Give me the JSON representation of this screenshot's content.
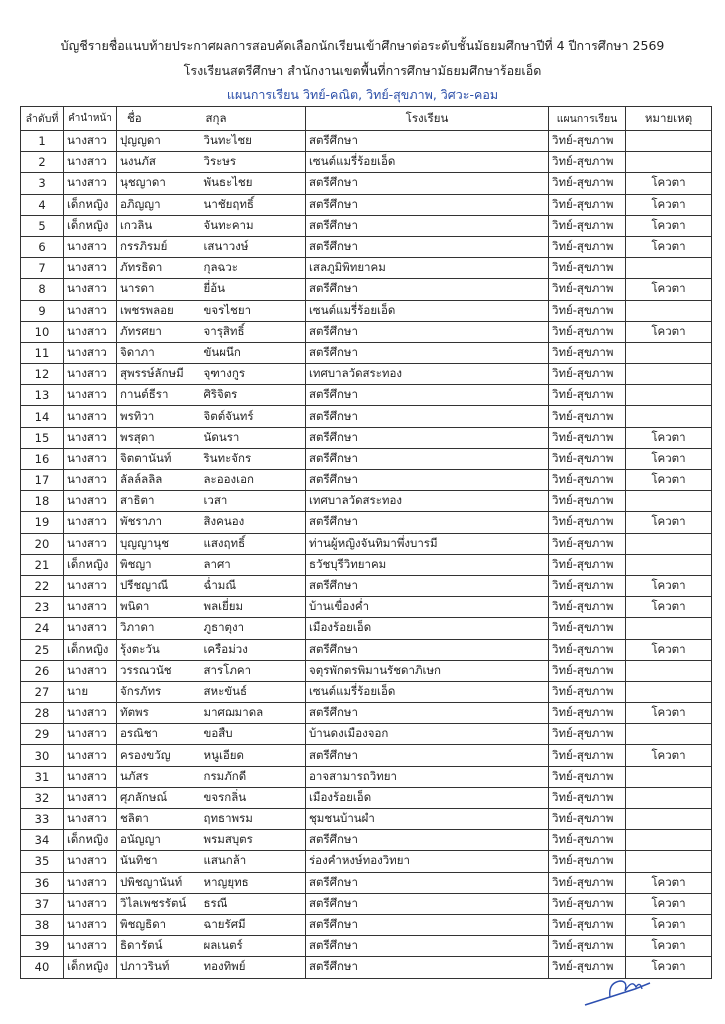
{
  "title_line1": "บัญชีรายชื่อแนบท้ายประกาศผลการสอบคัดเลือกนักเรียนเข้าศึกษาต่อระดับชั้นมัธยมศึกษาปีที่ 4 ปีการศึกษา 2569",
  "title_line2": "โรงเรียนสตรีศึกษา สำนักงานเขตพื้นที่การศึกษามัธยมศึกษาร้อยเอ็ด",
  "title_line3": "แผนการเรียน วิทย์-คณิต, วิทย์-สุขภาพ, วิศวะ-คอม",
  "accent_color": "#2b4ea8",
  "headers": {
    "no": "ลำดับที่",
    "prefix": "คำนำหน้า",
    "first": "ชื่อ",
    "last": "สกุล",
    "school": "โรงเรียน",
    "plan": "แผนการเรียน",
    "note": "หมายเหตุ"
  },
  "rows": [
    [
      "1",
      "นางสาว",
      "ปุญญดา",
      "วินทะไชย",
      "สตรีศึกษา",
      "วิทย์-สุขภาพ",
      ""
    ],
    [
      "2",
      "นางสาว",
      "นงนภัส",
      "วิระษร",
      "เซนต์แมรี่ร้อยเอ็ด",
      "วิทย์-สุขภาพ",
      ""
    ],
    [
      "3",
      "นางสาว",
      "นุชญาดา",
      "พันธะไชย",
      "สตรีศึกษา",
      "วิทย์-สุขภาพ",
      "โควตา"
    ],
    [
      "4",
      "เด็กหญิง",
      "อภิญญา",
      "นาชัยฤทธิ์",
      "สตรีศึกษา",
      "วิทย์-สุขภาพ",
      "โควตา"
    ],
    [
      "5",
      "เด็กหญิง",
      "เกวลิน",
      "จันทะคาม",
      "สตรีศึกษา",
      "วิทย์-สุขภาพ",
      "โควตา"
    ],
    [
      "6",
      "นางสาว",
      "กรรภิรมย์",
      "เสนาวงษ์",
      "สตรีศึกษา",
      "วิทย์-สุขภาพ",
      "โควตา"
    ],
    [
      "7",
      "นางสาว",
      "ภัทรธิดา",
      "กุลฉวะ",
      "เสลภูมิพิทยาคม",
      "วิทย์-สุขภาพ",
      ""
    ],
    [
      "8",
      "นางสาว",
      "นารดา",
      "ยี่อ้น",
      "สตรีศึกษา",
      "วิทย์-สุขภาพ",
      "โควตา"
    ],
    [
      "9",
      "นางสาว",
      "เพชรพลอย",
      "ขจรไชยา",
      "เซนต์แมรี่ร้อยเอ็ด",
      "วิทย์-สุขภาพ",
      ""
    ],
    [
      "10",
      "นางสาว",
      "ภัทรศยา",
      "จารุสิทธิ์",
      "สตรีศึกษา",
      "วิทย์-สุขภาพ",
      "โควตา"
    ],
    [
      "11",
      "นางสาว",
      "จิดาภา",
      "ขันผนึก",
      "สตรีศึกษา",
      "วิทย์-สุขภาพ",
      ""
    ],
    [
      "12",
      "นางสาว",
      "สุพรรษ์ลักษมี",
      "จุฑางกูร",
      "เทศบาลวัดสระทอง",
      "วิทย์-สุขภาพ",
      ""
    ],
    [
      "13",
      "นางสาว",
      "กานต์ธีรา",
      "ศิริจิตร",
      "สตรีศึกษา",
      "วิทย์-สุขภาพ",
      ""
    ],
    [
      "14",
      "นางสาว",
      "พรทิวา",
      "จิตต์จันทร์",
      "สตรีศึกษา",
      "วิทย์-สุขภาพ",
      ""
    ],
    [
      "15",
      "นางสาว",
      "พรสุดา",
      "นัดนรา",
      "สตรีศึกษา",
      "วิทย์-สุขภาพ",
      "โควตา"
    ],
    [
      "16",
      "นางสาว",
      "จิตตานันท์",
      "รินทะจักร",
      "สตรีศึกษา",
      "วิทย์-สุขภาพ",
      "โควตา"
    ],
    [
      "17",
      "นางสาว",
      "ลัลล์ลลิล",
      "ละอองเอก",
      "สตรีศึกษา",
      "วิทย์-สุขภาพ",
      "โควตา"
    ],
    [
      "18",
      "นางสาว",
      "สาธิตา",
      "เวสา",
      "เทศบาลวัดสระทอง",
      "วิทย์-สุขภาพ",
      ""
    ],
    [
      "19",
      "นางสาว",
      "พัชราภา",
      "สิงคนอง",
      "สตรีศึกษา",
      "วิทย์-สุขภาพ",
      "โควตา"
    ],
    [
      "20",
      "นางสาว",
      "บุญญานุช",
      "แสงฤทธิ์",
      "ท่านผู้หญิงจันทิมาพึ่งบารมี",
      "วิทย์-สุขภาพ",
      ""
    ],
    [
      "21",
      "เด็กหญิง",
      "พิชญา",
      "ลาศา",
      "ธวัชบุรีวิทยาคม",
      "วิทย์-สุขภาพ",
      ""
    ],
    [
      "22",
      "นางสาว",
      "ปรีชญาณี",
      "ฉ่ำมณี",
      "สตรีศึกษา",
      "วิทย์-สุขภาพ",
      "โควตา"
    ],
    [
      "23",
      "นางสาว",
      "พนิดา",
      "พลเยี่ยม",
      "บ้านเขื่องค่ำ",
      "วิทย์-สุขภาพ",
      "โควตา"
    ],
    [
      "24",
      "นางสาว",
      "วิภาดา",
      "ภูธาตุงา",
      "เมืองร้อยเอ็ด",
      "วิทย์-สุขภาพ",
      ""
    ],
    [
      "25",
      "เด็กหญิง",
      "รุ้งตะวัน",
      "เครือม่วง",
      "สตรีศึกษา",
      "วิทย์-สุขภาพ",
      "โควตา"
    ],
    [
      "26",
      "นางสาว",
      "วรรณวนัช",
      "สารโภคา",
      "จตุรพักตรพิมานรัชดาภิเษก",
      "วิทย์-สุขภาพ",
      ""
    ],
    [
      "27",
      "นาย",
      "จักรภัทร",
      "สหะขันธ์",
      "เซนต์แมรี่ร้อยเอ็ด",
      "วิทย์-สุขภาพ",
      ""
    ],
    [
      "28",
      "นางสาว",
      "ทัตพร",
      "มาศฌมาดล",
      "สตรีศึกษา",
      "วิทย์-สุขภาพ",
      "โควตา"
    ],
    [
      "29",
      "นางสาว",
      "อรณิชา",
      "ขอสืบ",
      "บ้านดงเมืองจอก",
      "วิทย์-สุขภาพ",
      ""
    ],
    [
      "30",
      "นางสาว",
      "ครองขวัญ",
      "หนูเอียด",
      "สตรีศึกษา",
      "วิทย์-สุขภาพ",
      "โควตา"
    ],
    [
      "31",
      "นางสาว",
      "นภัสร",
      "กรมภักดี",
      "อาจสามารถวิทยา",
      "วิทย์-สุขภาพ",
      ""
    ],
    [
      "32",
      "นางสาว",
      "ศุภลักษณ์",
      "ขจรกลิ่น",
      "เมืองร้อยเอ็ด",
      "วิทย์-สุขภาพ",
      ""
    ],
    [
      "33",
      "นางสาว",
      "ชลิตา",
      "ฤทธาพรม",
      "ชุมชนบ้านผำ",
      "วิทย์-สุขภาพ",
      ""
    ],
    [
      "34",
      "เด็กหญิง",
      "อนัญญา",
      "พรมสบุตร",
      "สตรีศึกษา",
      "วิทย์-สุขภาพ",
      ""
    ],
    [
      "35",
      "นางสาว",
      "นันทิชา",
      "แสนกล้า",
      "ร่องคำหงษ์ทองวิทยา",
      "วิทย์-สุขภาพ",
      ""
    ],
    [
      "36",
      "นางสาว",
      "ปพิชญานันท์",
      "หาญยุทธ",
      "สตรีศึกษา",
      "วิทย์-สุขภาพ",
      "โควตา"
    ],
    [
      "37",
      "นางสาว",
      "วิไลเพชรรัตน์",
      "ธรณี",
      "สตรีศึกษา",
      "วิทย์-สุขภาพ",
      "โควตา"
    ],
    [
      "38",
      "นางสาว",
      "พิชญธิดา",
      "ฉายรัศมี",
      "สตรีศึกษา",
      "วิทย์-สุขภาพ",
      "โควตา"
    ],
    [
      "39",
      "นางสาว",
      "ธิดารัตน์",
      "ผลเนตร์",
      "สตรีศึกษา",
      "วิทย์-สุขภาพ",
      "โควตา"
    ],
    [
      "40",
      "เด็กหญิง",
      "ปภาวรินท์",
      "ทองทิพย์",
      "สตรีศึกษา",
      "วิทย์-สุขภาพ",
      "โควตา"
    ]
  ]
}
